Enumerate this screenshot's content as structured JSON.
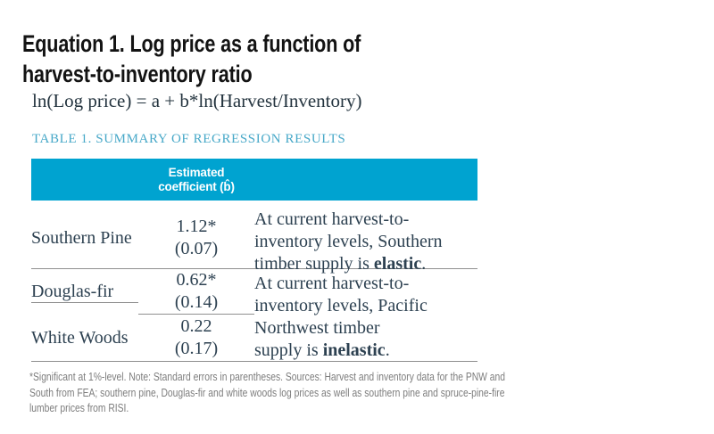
{
  "page": {
    "title_line1": "Equation 1. Log price as a function of",
    "title_line2": "harvest-to-inventory ratio",
    "equation": "ln(Log price) = a + b*ln(Harvest/Inventory)",
    "table_caption": "TABLE 1. SUMMARY OF REGRESSION RESULTS"
  },
  "table": {
    "header": {
      "col2_label_line1": "Estimated",
      "col2_label_line2": "coefficient (b̂)"
    },
    "rows": [
      {
        "name": "Southern Pine",
        "coefficient": "1.12*",
        "std_error": "(0.07)"
      },
      {
        "name": "Douglas-fir",
        "coefficient": "0.62*",
        "std_error": "(0.14)"
      },
      {
        "name": "White Woods",
        "coefficient": "0.22",
        "std_error": "(0.17)"
      }
    ],
    "notes": [
      {
        "pre": "At current harvest-to-\ninventory levels, Southern\ntimber supply is ",
        "bold": "elastic",
        "post": "."
      },
      {
        "pre": "At current harvest-to-\ninventory levels, Pacific\nNorthwest timber\nsupply is ",
        "bold": "inelastic",
        "post": "."
      }
    ]
  },
  "footnote": "*Significant at 1%-level. Note: Standard errors in parentheses. Sources: Harvest and inventory data for the PNW and South from FEA; southern pine, Douglas-fir and white woods log prices as well as southern pine and spruce-pine-fire lumber prices from RISI.",
  "colors": {
    "header_bg": "#00a3d0",
    "caption_text": "#47a8c8",
    "body_text": "#2d4151",
    "title_text": "#131313",
    "divider": "#8f8f8f",
    "footnote_text": "#7d7d7d"
  }
}
